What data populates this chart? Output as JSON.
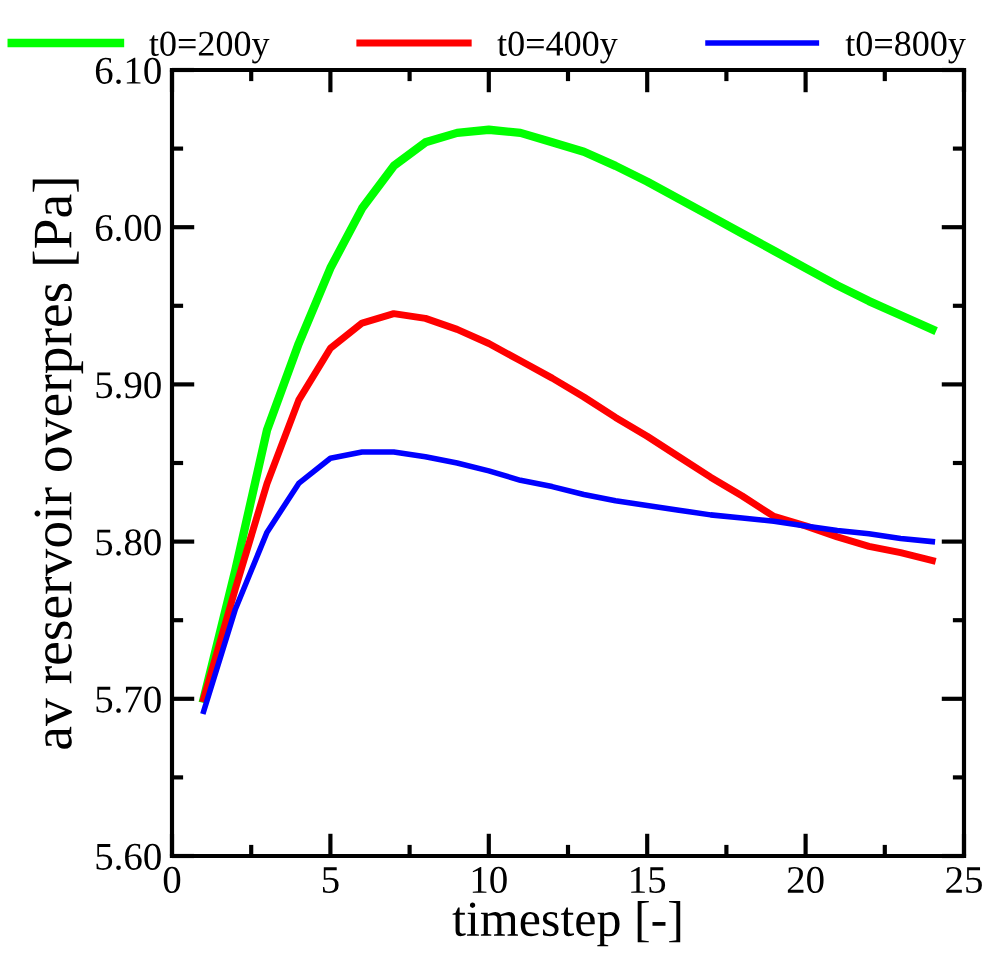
{
  "chart_data": {
    "type": "line",
    "xlabel": "timestep [-]",
    "ylabel": "av reservoir overpres [Pa]",
    "x": [
      1,
      2,
      3,
      4,
      5,
      6,
      7,
      8,
      9,
      10,
      11,
      12,
      13,
      14,
      15,
      16,
      17,
      18,
      19,
      20,
      21,
      22,
      23,
      24
    ],
    "series": [
      {
        "name": "t0=200y",
        "color": "#00ff00",
        "values": [
          5.7,
          5.782,
          5.871,
          5.926,
          5.974,
          6.012,
          6.039,
          6.054,
          6.06,
          6.062,
          6.06,
          6.054,
          6.048,
          6.039,
          6.029,
          6.018,
          6.007,
          5.996,
          5.985,
          5.974,
          5.963,
          5.953,
          5.944,
          5.935
        ]
      },
      {
        "name": "t0=400y",
        "color": "#ff0000",
        "values": [
          5.7,
          5.77,
          5.837,
          5.89,
          5.923,
          5.939,
          5.945,
          5.942,
          5.935,
          5.926,
          5.915,
          5.904,
          5.892,
          5.879,
          5.867,
          5.854,
          5.841,
          5.829,
          5.816,
          5.81,
          5.803,
          5.797,
          5.793,
          5.788
        ]
      },
      {
        "name": "t0=800y",
        "color": "#0000ff",
        "values": [
          5.692,
          5.757,
          5.806,
          5.837,
          5.853,
          5.857,
          5.857,
          5.854,
          5.85,
          5.845,
          5.839,
          5.835,
          5.83,
          5.826,
          5.823,
          5.82,
          5.817,
          5.815,
          5.813,
          5.81,
          5.807,
          5.805,
          5.802,
          5.8
        ]
      }
    ],
    "xlim": [
      0,
      25
    ],
    "xticks": [
      0,
      5,
      10,
      15,
      20,
      25
    ],
    "ylim": [
      5.6,
      6.1
    ],
    "yticks": [
      {
        "value": 5.6,
        "label": "5.60"
      },
      {
        "value": 5.7,
        "label": "5.70"
      },
      {
        "value": 5.8,
        "label": "5.80"
      },
      {
        "value": 5.9,
        "label": "5.90"
      },
      {
        "value": 6.0,
        "label": "6.00"
      },
      {
        "value": 6.1,
        "label": "6.10"
      }
    ],
    "grid": false,
    "legend": "top",
    "marker": "none",
    "line_style": "solid"
  }
}
